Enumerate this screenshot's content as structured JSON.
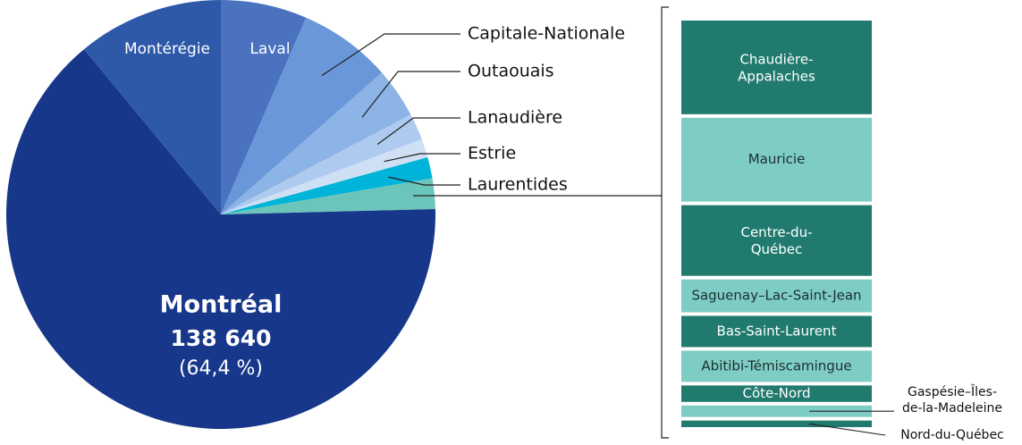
{
  "chart_data": {
    "type": "pie",
    "categories": [
      "Laval",
      "Capitale-Nationale",
      "Outaouais",
      "Lanaudière",
      "Estrie",
      "Laurentides",
      null,
      "Montréal",
      "Montérégie"
    ],
    "values": [
      6.5,
      7.0,
      3.8,
      2.0,
      1.4,
      1.6,
      2.3,
      64.4,
      11.0
    ],
    "value_labels": [
      null,
      null,
      null,
      null,
      null,
      null,
      null,
      "(64,4 %)",
      null
    ],
    "counts": [
      null,
      null,
      null,
      null,
      null,
      null,
      null,
      {
        "value": 138640,
        "label": "138 640"
      },
      null
    ],
    "colors": [
      "#4a72bf",
      "#6a97d9",
      "#8db4e6",
      "#aecbef",
      "#cfe0f5",
      "#00b3d8",
      "#6cc5bb",
      "#17378a",
      "#2e58a8"
    ],
    "breakdown": {
      "type": "bar",
      "of_category": 6,
      "categories": [
        "Chaudière-Appalaches",
        "Mauricie",
        "Centre-du-Québec",
        "Saguenay–Lac-Saint-Jean",
        "Bas-Saint-Laurent",
        "Abitibi-Témiscamingue",
        "Côte-Nord",
        "Gaspésie–Îles-de-la-Madeleine",
        "Nord-du-Québec"
      ],
      "values": [
        0.57,
        0.51,
        0.43,
        0.2,
        0.19,
        0.19,
        0.1,
        0.07,
        0.04
      ],
      "colors": [
        "#207a6e",
        "#7ecdc4"
      ]
    }
  }
}
